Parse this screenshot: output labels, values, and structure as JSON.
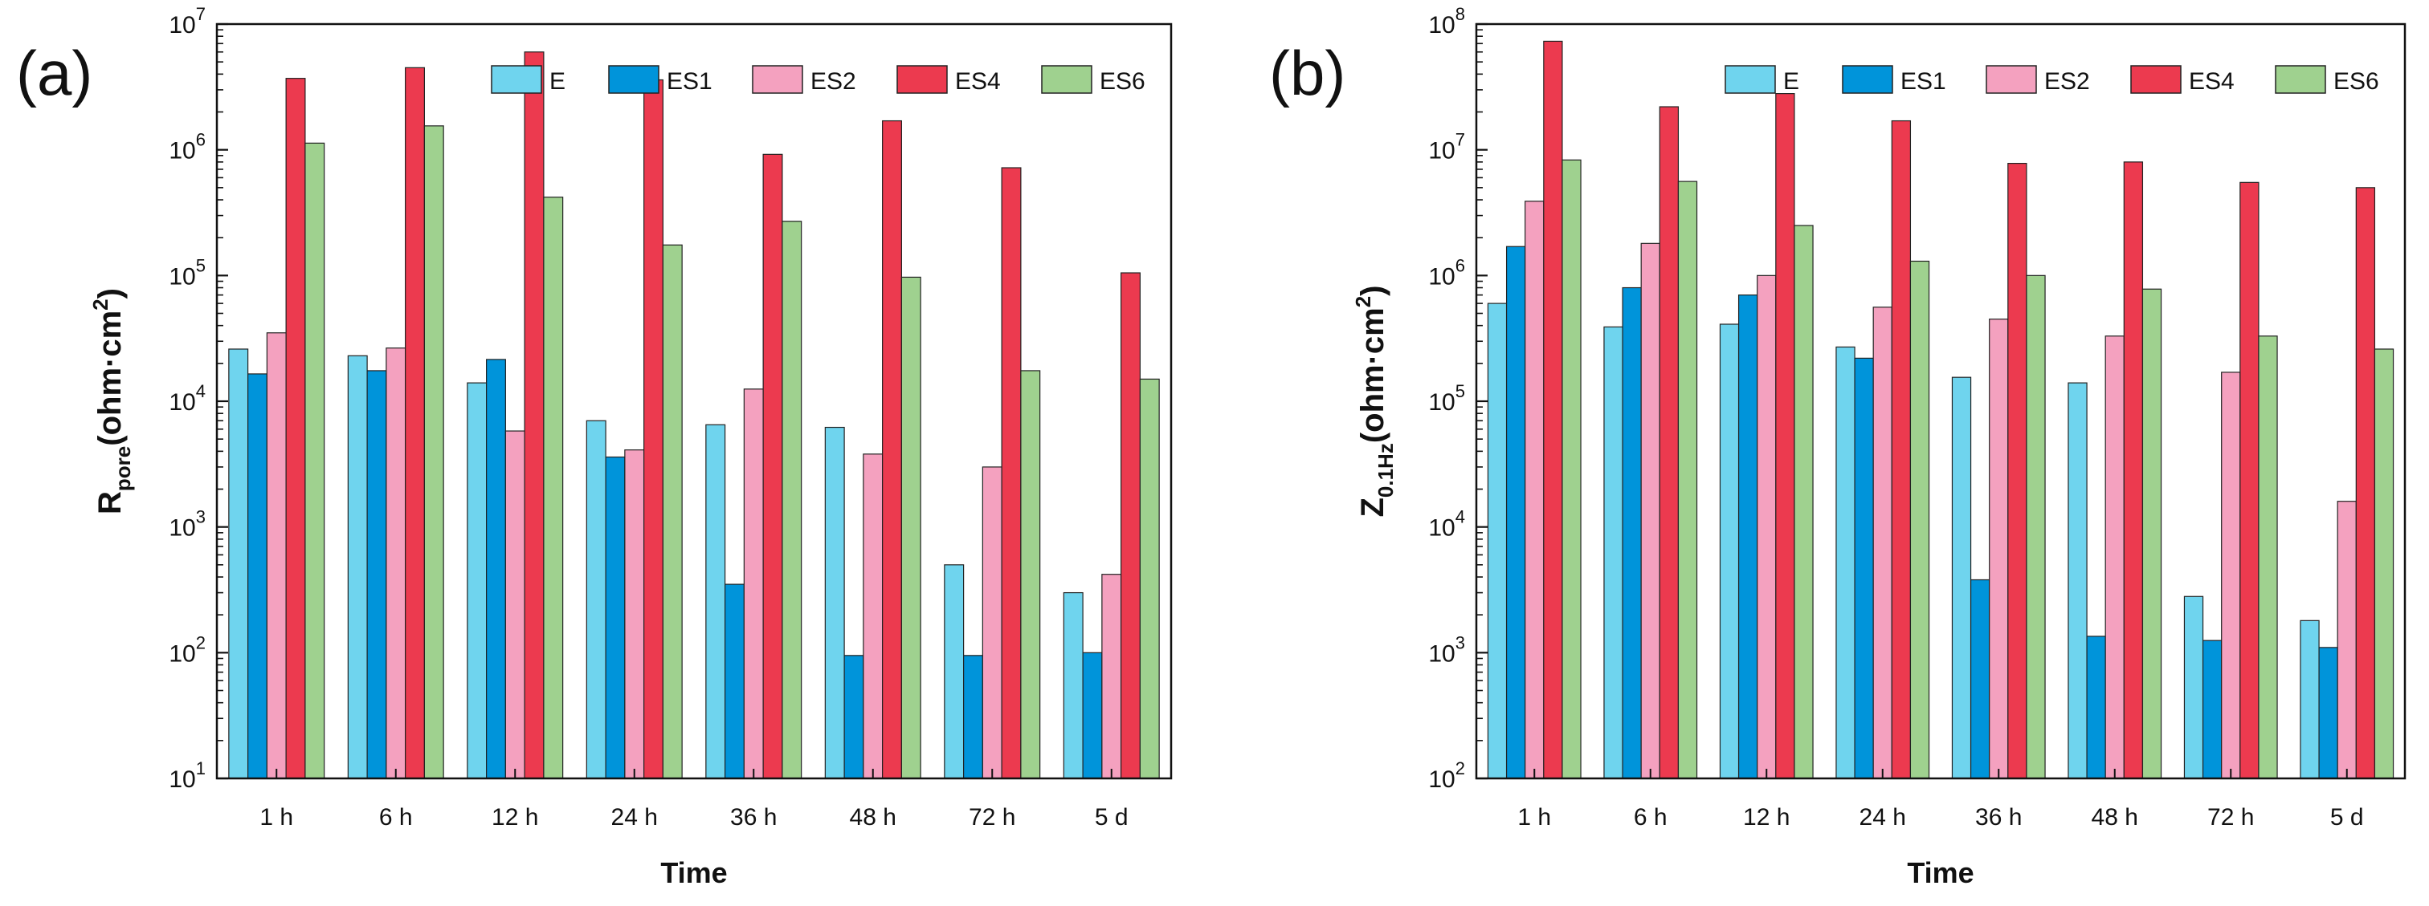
{
  "colors": {
    "E": "#6fd4ee",
    "ES1": "#0094da",
    "ES2": "#f4a1bf",
    "ES4": "#ec3a4f",
    "ES6": "#9fd18f"
  },
  "chart_data": [
    {
      "type": "bar",
      "panel_label": "(a)",
      "yscale": "log",
      "ylim_exp": [
        1,
        7
      ],
      "ytick_base": "10",
      "ytick_exps": [
        "1",
        "2",
        "3",
        "4",
        "5",
        "6",
        "7"
      ],
      "xlabel": "Time",
      "ylabel": {
        "main": "R",
        "sub": "pore",
        "paren": "(ohm·cm",
        "sup": "2",
        "close": ")"
      },
      "categories": [
        "1 h",
        "6 h",
        "12 h",
        "24 h",
        "36 h",
        "48 h",
        "72 h",
        "5 d"
      ],
      "legend": [
        "E",
        "ES1",
        "ES2",
        "ES4",
        "ES6"
      ],
      "series": [
        {
          "name": "E",
          "values": [
            26000,
            23000,
            14000,
            7000,
            6500,
            6200,
            500,
            300
          ]
        },
        {
          "name": "ES1",
          "values": [
            16500,
            17500,
            21500,
            3600,
            350,
            95,
            95,
            100
          ]
        },
        {
          "name": "ES2",
          "values": [
            35000,
            26500,
            5800,
            4100,
            12500,
            3800,
            3000,
            420
          ]
        },
        {
          "name": "ES4",
          "values": [
            3700000,
            4500000,
            6000000,
            3600000,
            920000,
            1700000,
            720000,
            105000
          ]
        },
        {
          "name": "ES6",
          "values": [
            1130000,
            1550000,
            420000,
            175000,
            270000,
            97000,
            17500,
            15000
          ]
        }
      ]
    },
    {
      "type": "bar",
      "panel_label": "(b)",
      "yscale": "log",
      "ylim_exp": [
        2,
        8
      ],
      "ytick_base": "10",
      "ytick_exps": [
        "2",
        "3",
        "4",
        "5",
        "6",
        "7",
        "8"
      ],
      "xlabel": "Time",
      "ylabel": {
        "main": "Z",
        "sub": "0.1Hz",
        "paren": "(ohm·cm",
        "sup": "2",
        "close": ")"
      },
      "categories": [
        "1 h",
        "6 h",
        "12 h",
        "24 h",
        "36 h",
        "48 h",
        "72 h",
        "5 d"
      ],
      "legend": [
        "E",
        "ES1",
        "ES2",
        "ES4",
        "ES6"
      ],
      "series": [
        {
          "name": "E",
          "values": [
            600000,
            390000,
            410000,
            270000,
            155000,
            140000,
            2800,
            1800
          ]
        },
        {
          "name": "ES1",
          "values": [
            1700000,
            800000,
            700000,
            220000,
            3800,
            1350,
            1250,
            1100
          ]
        },
        {
          "name": "ES2",
          "values": [
            3900000,
            1800000,
            1000000,
            560000,
            450000,
            330000,
            170000,
            16000
          ]
        },
        {
          "name": "ES4",
          "values": [
            73000000,
            22000000,
            28000000,
            17000000,
            7800000,
            8000000,
            5500000,
            5000000
          ]
        },
        {
          "name": "ES6",
          "values": [
            8300000,
            5600000,
            2500000,
            1300000,
            1000000,
            780000,
            330000,
            260000
          ]
        }
      ]
    }
  ]
}
